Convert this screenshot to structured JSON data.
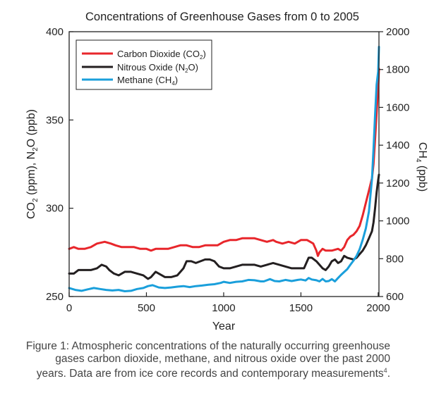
{
  "chart_data": {
    "type": "line",
    "title": "Concentrations of Greenhouse Gases from 0 to 2005",
    "xlabel": "Year",
    "ylabel_left": {
      "pre": "CO",
      "s1": "2",
      "mid": " (ppm), N",
      "s2": "2",
      "post": "O (ppb)"
    },
    "ylabel_right": {
      "pre": "CH",
      "s1": "4",
      "post": " (ppb)"
    },
    "xlim": [
      0,
      2005
    ],
    "ylim_left": [
      250,
      400
    ],
    "ylim_right": [
      600,
      2000
    ],
    "x_ticks": [
      "0",
      "500",
      "1000",
      "1500",
      "2000"
    ],
    "y_left_ticks": [
      "250",
      "300",
      "350",
      "400"
    ],
    "y_right_ticks": [
      "600",
      "800",
      "1000",
      "1200",
      "1400",
      "1600",
      "1800",
      "2000"
    ],
    "legend_position": "top-left",
    "series": [
      {
        "name": {
          "pre": "Carbon Dioxide (CO",
          "sub": "2",
          "post": ")"
        },
        "color": "#e8262b",
        "axis": "left",
        "points": [
          [
            0,
            277
          ],
          [
            30,
            278
          ],
          [
            60,
            277
          ],
          [
            100,
            277
          ],
          [
            140,
            278
          ],
          [
            180,
            280
          ],
          [
            230,
            281
          ],
          [
            270,
            280
          ],
          [
            300,
            279
          ],
          [
            340,
            278
          ],
          [
            380,
            278
          ],
          [
            420,
            278
          ],
          [
            460,
            277
          ],
          [
            500,
            277
          ],
          [
            530,
            276
          ],
          [
            560,
            277
          ],
          [
            600,
            277
          ],
          [
            640,
            277
          ],
          [
            680,
            278
          ],
          [
            720,
            279
          ],
          [
            760,
            279
          ],
          [
            800,
            278
          ],
          [
            840,
            278
          ],
          [
            880,
            279
          ],
          [
            920,
            279
          ],
          [
            960,
            279
          ],
          [
            1000,
            281
          ],
          [
            1040,
            282
          ],
          [
            1080,
            282
          ],
          [
            1120,
            283
          ],
          [
            1160,
            283
          ],
          [
            1200,
            283
          ],
          [
            1240,
            282
          ],
          [
            1280,
            281
          ],
          [
            1320,
            282
          ],
          [
            1340,
            281
          ],
          [
            1380,
            280
          ],
          [
            1420,
            281
          ],
          [
            1460,
            280
          ],
          [
            1500,
            282
          ],
          [
            1540,
            282
          ],
          [
            1560,
            281
          ],
          [
            1580,
            280
          ],
          [
            1600,
            276
          ],
          [
            1610,
            273
          ],
          [
            1620,
            275
          ],
          [
            1640,
            277
          ],
          [
            1660,
            276
          ],
          [
            1680,
            276
          ],
          [
            1700,
            276
          ],
          [
            1740,
            277
          ],
          [
            1760,
            276
          ],
          [
            1780,
            278
          ],
          [
            1800,
            282
          ],
          [
            1820,
            284
          ],
          [
            1840,
            285
          ],
          [
            1860,
            287
          ],
          [
            1880,
            290
          ],
          [
            1900,
            296
          ],
          [
            1920,
            303
          ],
          [
            1940,
            310
          ],
          [
            1960,
            317
          ],
          [
            1970,
            325
          ],
          [
            1980,
            339
          ],
          [
            1990,
            354
          ],
          [
            2000,
            369
          ],
          [
            2005,
            379
          ]
        ]
      },
      {
        "name": {
          "pre": "Nitrous Oxide (N",
          "sub": "2",
          "post": "O)"
        },
        "color": "#231f20",
        "axis": "left",
        "points": [
          [
            0,
            263
          ],
          [
            30,
            263
          ],
          [
            60,
            265
          ],
          [
            100,
            265
          ],
          [
            140,
            265
          ],
          [
            180,
            266
          ],
          [
            210,
            268
          ],
          [
            240,
            267
          ],
          [
            260,
            265
          ],
          [
            290,
            263
          ],
          [
            320,
            262
          ],
          [
            360,
            264
          ],
          [
            400,
            264
          ],
          [
            440,
            263
          ],
          [
            480,
            262
          ],
          [
            510,
            260
          ],
          [
            530,
            261
          ],
          [
            560,
            264
          ],
          [
            580,
            263
          ],
          [
            620,
            261
          ],
          [
            660,
            261
          ],
          [
            700,
            262
          ],
          [
            740,
            266
          ],
          [
            760,
            270
          ],
          [
            790,
            270
          ],
          [
            820,
            269
          ],
          [
            850,
            270
          ],
          [
            880,
            271
          ],
          [
            910,
            271
          ],
          [
            940,
            270
          ],
          [
            970,
            267
          ],
          [
            1000,
            266
          ],
          [
            1040,
            266
          ],
          [
            1080,
            267
          ],
          [
            1120,
            268
          ],
          [
            1160,
            268
          ],
          [
            1200,
            268
          ],
          [
            1240,
            267
          ],
          [
            1280,
            268
          ],
          [
            1320,
            269
          ],
          [
            1360,
            268
          ],
          [
            1400,
            267
          ],
          [
            1440,
            266
          ],
          [
            1480,
            266
          ],
          [
            1520,
            266
          ],
          [
            1550,
            272
          ],
          [
            1570,
            272
          ],
          [
            1600,
            270
          ],
          [
            1620,
            268
          ],
          [
            1640,
            266
          ],
          [
            1660,
            265
          ],
          [
            1680,
            267
          ],
          [
            1700,
            270
          ],
          [
            1720,
            271
          ],
          [
            1740,
            269
          ],
          [
            1760,
            270
          ],
          [
            1780,
            273
          ],
          [
            1800,
            272
          ],
          [
            1840,
            271
          ],
          [
            1860,
            272
          ],
          [
            1880,
            274
          ],
          [
            1900,
            276
          ],
          [
            1920,
            279
          ],
          [
            1940,
            283
          ],
          [
            1960,
            287
          ],
          [
            1970,
            292
          ],
          [
            1980,
            300
          ],
          [
            1990,
            309
          ],
          [
            2000,
            316
          ],
          [
            2005,
            319
          ]
        ]
      },
      {
        "name": {
          "pre": "Methane (CH",
          "sub": "4",
          "post": ")"
        },
        "color": "#1a9fdb",
        "axis": "right",
        "points": [
          [
            0,
            645
          ],
          [
            40,
            635
          ],
          [
            80,
            630
          ],
          [
            120,
            638
          ],
          [
            160,
            645
          ],
          [
            200,
            640
          ],
          [
            240,
            635
          ],
          [
            280,
            632
          ],
          [
            320,
            635
          ],
          [
            360,
            628
          ],
          [
            400,
            630
          ],
          [
            440,
            640
          ],
          [
            480,
            645
          ],
          [
            510,
            655
          ],
          [
            540,
            660
          ],
          [
            580,
            648
          ],
          [
            620,
            645
          ],
          [
            660,
            648
          ],
          [
            700,
            652
          ],
          [
            740,
            655
          ],
          [
            780,
            650
          ],
          [
            820,
            655
          ],
          [
            860,
            658
          ],
          [
            900,
            662
          ],
          [
            940,
            665
          ],
          [
            980,
            672
          ],
          [
            1000,
            678
          ],
          [
            1040,
            672
          ],
          [
            1080,
            678
          ],
          [
            1120,
            680
          ],
          [
            1160,
            688
          ],
          [
            1200,
            686
          ],
          [
            1240,
            680
          ],
          [
            1260,
            680
          ],
          [
            1300,
            692
          ],
          [
            1330,
            682
          ],
          [
            1360,
            680
          ],
          [
            1400,
            688
          ],
          [
            1440,
            682
          ],
          [
            1480,
            688
          ],
          [
            1500,
            690
          ],
          [
            1530,
            685
          ],
          [
            1550,
            698
          ],
          [
            1570,
            690
          ],
          [
            1600,
            686
          ],
          [
            1620,
            680
          ],
          [
            1640,
            693
          ],
          [
            1660,
            680
          ],
          [
            1680,
            682
          ],
          [
            1700,
            692
          ],
          [
            1720,
            680
          ],
          [
            1740,
            698
          ],
          [
            1760,
            715
          ],
          [
            1780,
            730
          ],
          [
            1800,
            745
          ],
          [
            1820,
            768
          ],
          [
            1840,
            790
          ],
          [
            1860,
            815
          ],
          [
            1880,
            850
          ],
          [
            1900,
            900
          ],
          [
            1920,
            960
          ],
          [
            1940,
            1050
          ],
          [
            1960,
            1220
          ],
          [
            1970,
            1380
          ],
          [
            1980,
            1560
          ],
          [
            1990,
            1720
          ],
          [
            2000,
            1790
          ],
          [
            2005,
            1920
          ]
        ]
      }
    ]
  },
  "caption": {
    "text": "Figure 1: Atmospheric concentrations of the naturally occurring greenhouse gases carbon dioxide, methane, and nitrous oxide over the past 2000 years. Data are from ice core records and contemporary measurements",
    "superscript": "4",
    "end": "."
  }
}
